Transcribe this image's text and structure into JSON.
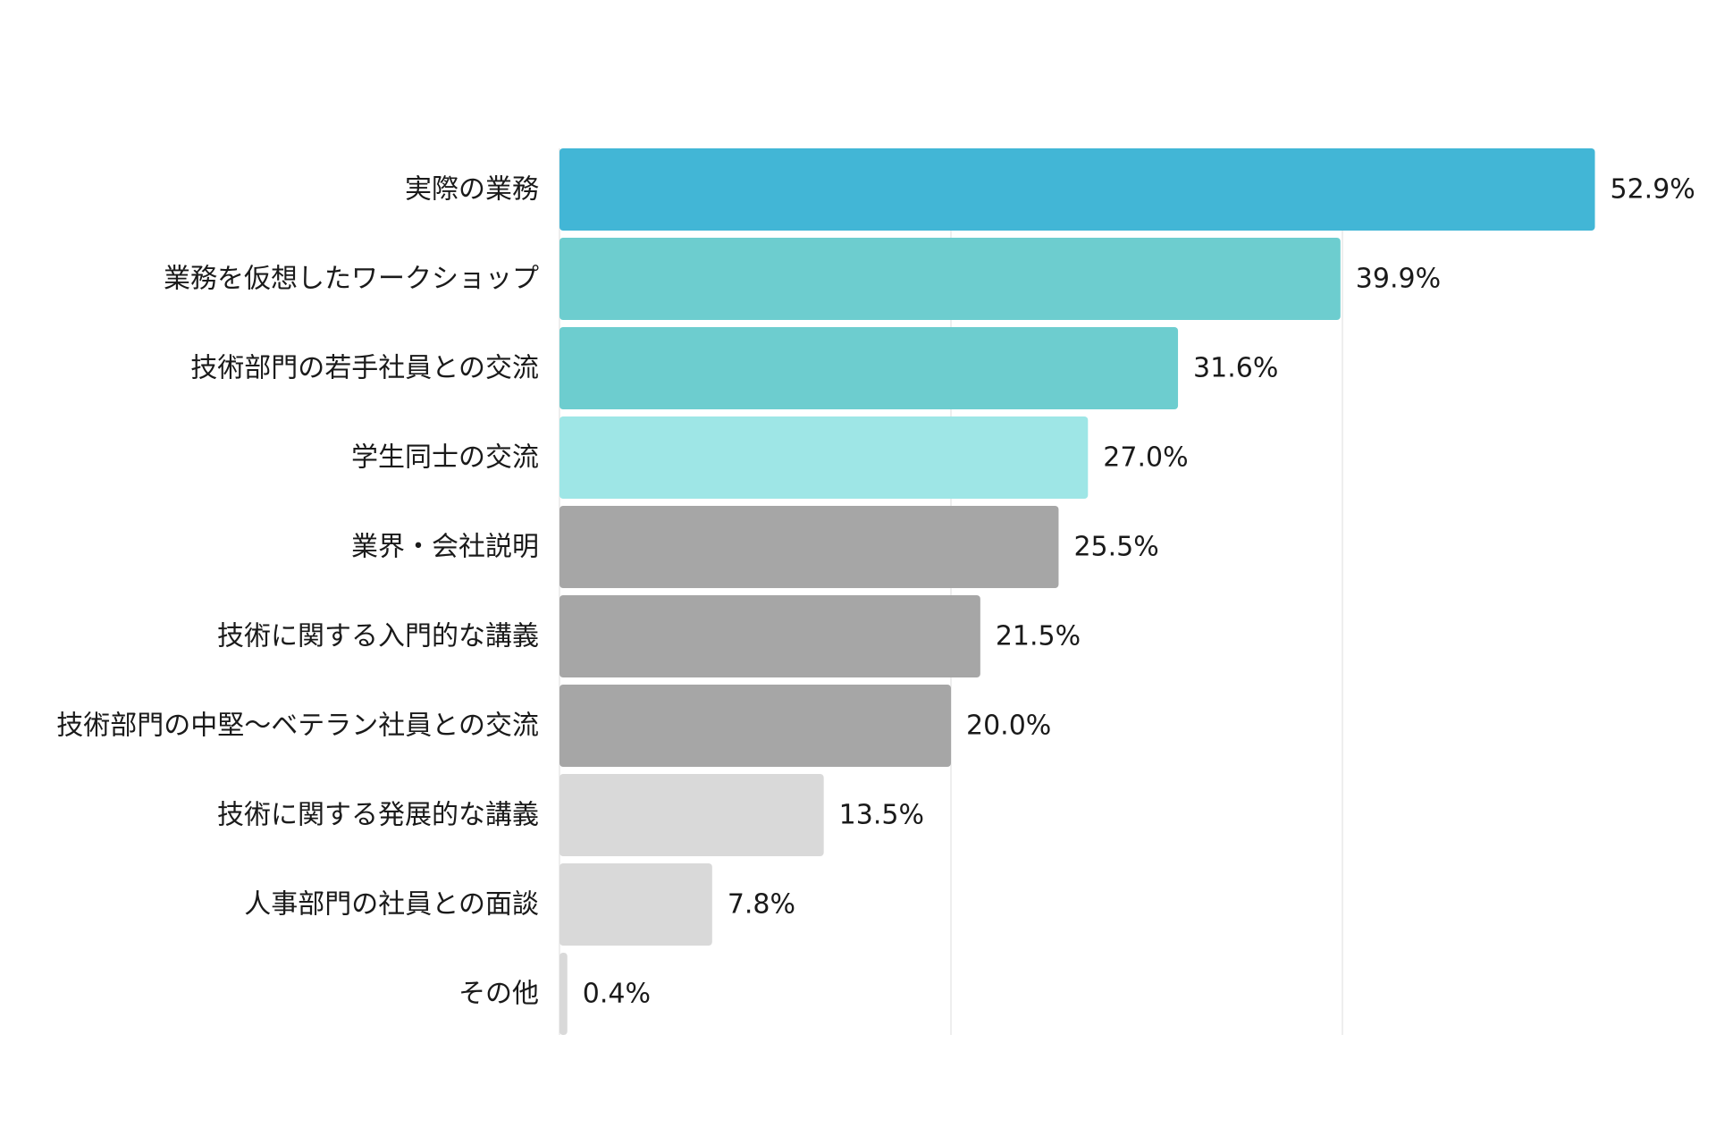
{
  "chart_data": {
    "type": "bar",
    "orientation": "horizontal",
    "categories": [
      "実際の業務",
      "業務を仮想したワークショップ",
      "技術部門の若手社員との交流",
      "学生同士の交流",
      "業界・会社説明",
      "技術に関する入門的な講義",
      "技術部門の中堅〜ベテラン社員との交流",
      "技術に関する発展的な講義",
      "人事部門の社員との面談",
      "その他"
    ],
    "values": [
      52.9,
      39.9,
      31.6,
      27.0,
      25.5,
      21.5,
      20.0,
      13.5,
      7.8,
      0.4
    ],
    "value_labels": [
      "52.9%",
      "39.9%",
      "31.6%",
      "27.0%",
      "25.5%",
      "21.5%",
      "20.0%",
      "13.5%",
      "7.8%",
      "0.4%"
    ],
    "colors": [
      "#42b6d6",
      "#6dcdcf",
      "#6dcdcf",
      "#9ee6e6",
      "#a6a6a6",
      "#a6a6a6",
      "#a6a6a6",
      "#d9d9d9",
      "#d9d9d9",
      "#d9d9d9"
    ],
    "xlim": [
      0,
      60
    ],
    "gridlines": [
      20,
      40
    ],
    "grid_color": "#e8e8e8",
    "title": "",
    "xlabel": "",
    "ylabel": ""
  }
}
